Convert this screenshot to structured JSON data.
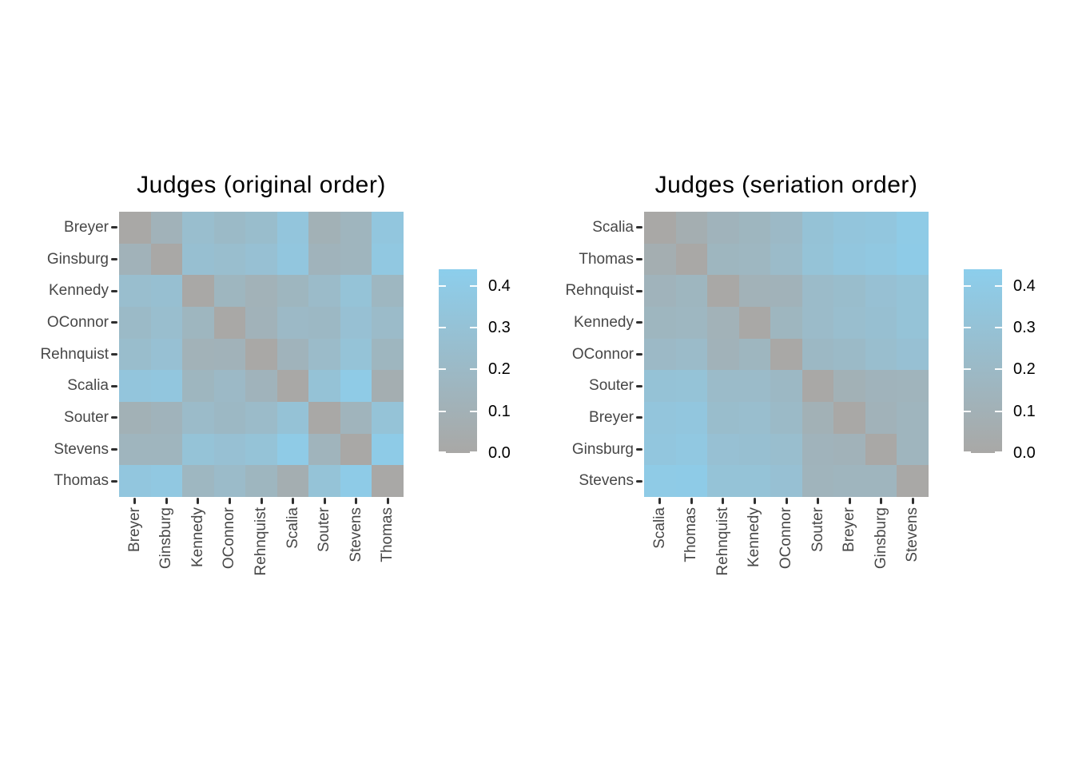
{
  "page": {
    "background": "#ffffff"
  },
  "chart_data": {
    "type": "heatmap",
    "description": "Two side-by-side dissimilarity heatmaps of US Supreme Court judges, before and after seriation",
    "judges": [
      "Breyer",
      "Ginsburg",
      "Kennedy",
      "OConnor",
      "Rehnquist",
      "Scalia",
      "Souter",
      "Stevens",
      "Thomas"
    ],
    "dissimilarity_matrix_original_order": [
      [
        0.0,
        0.12,
        0.25,
        0.21,
        0.24,
        0.34,
        0.1,
        0.15,
        0.35
      ],
      [
        0.12,
        0.0,
        0.27,
        0.25,
        0.28,
        0.35,
        0.13,
        0.15,
        0.37
      ],
      [
        0.25,
        0.27,
        0.0,
        0.16,
        0.11,
        0.16,
        0.22,
        0.31,
        0.17
      ],
      [
        0.21,
        0.25,
        0.16,
        0.0,
        0.12,
        0.2,
        0.19,
        0.28,
        0.22
      ],
      [
        0.24,
        0.28,
        0.11,
        0.12,
        0.0,
        0.13,
        0.22,
        0.31,
        0.16
      ],
      [
        0.34,
        0.35,
        0.16,
        0.2,
        0.13,
        0.0,
        0.3,
        0.4,
        0.07
      ],
      [
        0.1,
        0.13,
        0.22,
        0.19,
        0.22,
        0.3,
        0.0,
        0.14,
        0.31
      ],
      [
        0.15,
        0.15,
        0.31,
        0.28,
        0.31,
        0.4,
        0.14,
        0.0,
        0.41
      ],
      [
        0.35,
        0.37,
        0.17,
        0.22,
        0.16,
        0.07,
        0.31,
        0.41,
        0.0
      ]
    ],
    "panels": [
      {
        "title": "Judges (original order)",
        "order": [
          "Breyer",
          "Ginsburg",
          "Kennedy",
          "OConnor",
          "Rehnquist",
          "Scalia",
          "Souter",
          "Stevens",
          "Thomas"
        ]
      },
      {
        "title": "Judges (seriation order)",
        "order": [
          "Scalia",
          "Thomas",
          "Rehnquist",
          "Kennedy",
          "OConnor",
          "Souter",
          "Breyer",
          "Ginsburg",
          "Stevens"
        ]
      }
    ],
    "colorbar": {
      "min": 0.0,
      "max": 0.44,
      "tick_values": [
        0.4,
        0.3,
        0.2,
        0.1,
        0.0
      ],
      "tick_labels": [
        "0.4",
        "0.3",
        "0.2",
        "0.1",
        "0.0"
      ],
      "color_low": "#a9a8a6",
      "color_high": "#8cceec",
      "position": "right of each panel"
    },
    "grid": false,
    "axes": {
      "x_tick_label_rotation_deg": -90,
      "y_tick_labels_side": "left",
      "x_tick_labels_side": "bottom"
    }
  }
}
